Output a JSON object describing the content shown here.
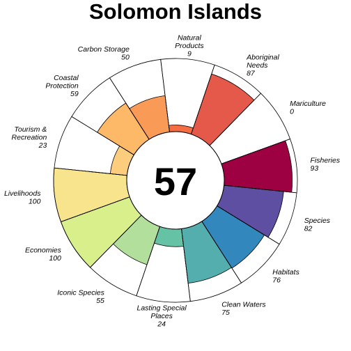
{
  "chart_data": {
    "type": "polar-bar",
    "title": "Solomon Islands",
    "center_value": "57",
    "ylim": [
      0,
      100
    ],
    "segments": [
      {
        "label": "Natural Products",
        "value": 9,
        "value_label": "9",
        "color": "#f46d43"
      },
      {
        "label": "Aboriginal Needs",
        "value": 87,
        "value_label": "87",
        "color": "#e5594b"
      },
      {
        "label": "Mariculture",
        "value": 0,
        "value_label": "0",
        "color": "#d53e4f"
      },
      {
        "label": "Fisheries",
        "value": 93,
        "value_label": "93",
        "color": "#9e0142"
      },
      {
        "label": "Species",
        "value": 82,
        "value_label": "82",
        "color": "#5e4fa2"
      },
      {
        "label": "Habitats",
        "value": 76,
        "value_label": "76",
        "color": "#3288bd"
      },
      {
        "label": "Clean Waters",
        "value": 75,
        "value_label": "75",
        "color": "#54aead"
      },
      {
        "label": "Lasting Special Places",
        "value": 24,
        "value_label": "24",
        "color": "#66c2a5"
      },
      {
        "label": "Iconic Species",
        "value": 55,
        "value_label": "55",
        "color": "#b3df9c"
      },
      {
        "label": "Economies",
        "value": 100,
        "value_label": "100",
        "color": "#d9ef8b"
      },
      {
        "label": "Livelihoods",
        "value": 100,
        "value_label": "100",
        "color": "#f8e48c"
      },
      {
        "label": "Tourism & Recreation",
        "value": 23,
        "value_label": "23",
        "color": "#fdcd7e"
      },
      {
        "label": "Coastal Protection",
        "value": 59,
        "value_label": "59",
        "color": "#fdb868"
      },
      {
        "label": "Carbon Storage",
        "value": 50,
        "value_label": "50",
        "color": "#f99b56"
      }
    ]
  }
}
